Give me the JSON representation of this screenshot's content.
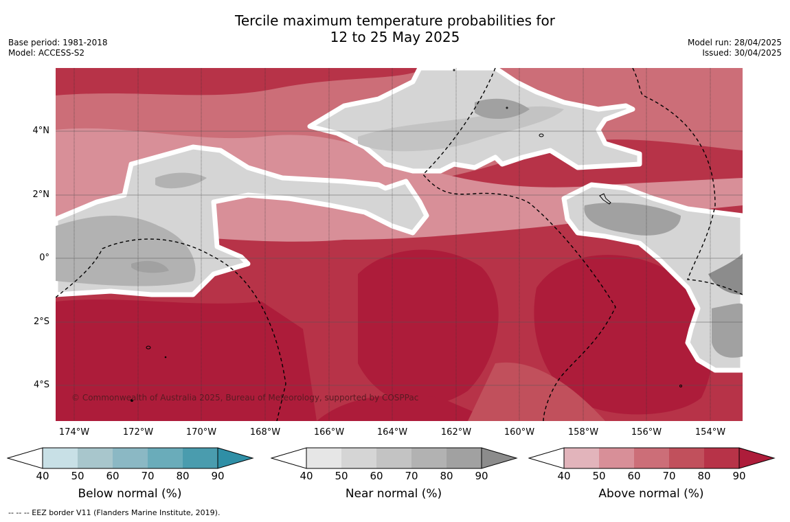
{
  "title": {
    "line1": "Tercile maximum temperature probabilities for",
    "line2": "12 to 25 May 2025"
  },
  "meta_left": {
    "base_period": "Base period: 1981-2018",
    "model": "Model: ACCESS-S2"
  },
  "meta_right": {
    "model_run": "Model run: 28/04/2025",
    "issued": "Issued: 30/04/2025"
  },
  "lat_labels": [
    "4°N",
    "2°N",
    "0°",
    "2°S",
    "4°S"
  ],
  "lon_labels": [
    "174°W",
    "172°W",
    "170°W",
    "168°W",
    "166°W",
    "164°W",
    "162°W",
    "160°W",
    "158°W",
    "156°W",
    "154°W"
  ],
  "copyright": "© Commonwealth of Australia 2025, Bureau of Meteorology, supported by COSPPac",
  "colorbars": [
    {
      "label": "Below normal (%)",
      "ticks": [
        "40",
        "50",
        "60",
        "70",
        "80",
        "90"
      ],
      "colors": [
        "#ffffff",
        "#c8e0e6",
        "#a8c6cc",
        "#8bb8c4",
        "#6aacba",
        "#4a9cae",
        "#2f8fa6"
      ]
    },
    {
      "label": "Near normal (%)",
      "ticks": [
        "40",
        "50",
        "60",
        "70",
        "80",
        "90"
      ],
      "colors": [
        "#ffffff",
        "#e6e6e6",
        "#d5d5d5",
        "#c3c3c3",
        "#b2b2b2",
        "#a1a1a1",
        "#8c8c8c"
      ]
    },
    {
      "label": "Above normal (%)",
      "ticks": [
        "40",
        "50",
        "60",
        "70",
        "80",
        "90"
      ],
      "colors": [
        "#ffffff",
        "#e2b4bb",
        "#d88f98",
        "#cc6e78",
        "#c1505c",
        "#b73348",
        "#ad1c3a"
      ]
    }
  ],
  "footnote": "--  --  -- EEZ border V11 (Flanders Marine Institute, 2019)."
}
